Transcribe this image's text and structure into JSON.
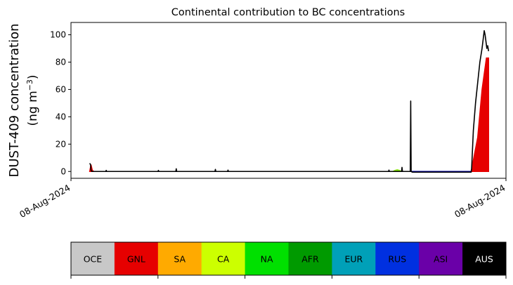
{
  "chart_data": {
    "type": "area",
    "title": "Continental contribution to BC concentrations",
    "ylabel_line1": "DUST-409 concentration",
    "ylabel_line2": "(ng m",
    "ylabel_sup": "−3",
    "ylabel_close": ")",
    "xlabel": "",
    "ylim": [
      -5,
      109
    ],
    "yticks": [
      0,
      20,
      40,
      60,
      80,
      100
    ],
    "xlim": [
      0,
      1
    ],
    "xticks": [
      0,
      1
    ],
    "xtick_labels": [
      "08-Aug-2024",
      "08-Aug-2024"
    ],
    "grid": false,
    "total_line_color": "#000000",
    "series": [
      {
        "name": "GNL",
        "color": "#e60000",
        "x": [
          0.043,
          0.046,
          0.049,
          0.052,
          0.92,
          0.935,
          0.945,
          0.955,
          0.96
        ],
        "y": [
          0.0,
          5.0,
          1.0,
          0.0,
          0.0,
          25.0,
          60.0,
          83.0,
          83.0
        ]
      },
      {
        "name": "NA",
        "color": "#80e000",
        "x": [
          0.74,
          0.745,
          0.75,
          0.755,
          0.76
        ],
        "y": [
          0.0,
          0.8,
          1.2,
          0.8,
          0.0
        ]
      },
      {
        "name": "RUS",
        "color": "#0000a0",
        "x": [
          0.05,
          0.92
        ],
        "y": [
          0.0,
          0.0
        ]
      }
    ],
    "total": {
      "x": [
        0.043,
        0.045,
        0.046,
        0.048,
        0.05,
        0.08,
        0.081,
        0.082,
        0.2,
        0.201,
        0.202,
        0.241,
        0.242,
        0.243,
        0.331,
        0.332,
        0.333,
        0.36,
        0.361,
        0.362,
        0.73,
        0.731,
        0.732,
        0.75,
        0.76,
        0.761,
        0.762,
        0.77,
        0.78,
        0.781,
        0.782,
        0.785,
        0.92,
        0.921,
        0.925,
        0.93,
        0.935,
        0.94,
        0.945,
        0.95,
        0.952,
        0.954,
        0.956,
        0.958,
        0.96
      ],
      "y": [
        6.0,
        5.0,
        1.0,
        0.0,
        0.0,
        0.0,
        0.8,
        0.0,
        0.0,
        0.8,
        0.0,
        0.0,
        2.0,
        0.0,
        0.0,
        1.5,
        0.0,
        0.0,
        1.0,
        0.0,
        0.0,
        1.0,
        0.0,
        0.0,
        0.0,
        3.0,
        0.0,
        0.0,
        0.0,
        51.5,
        0.0,
        -0.5,
        -0.5,
        2.0,
        30.0,
        50.0,
        65.0,
        80.0,
        90.0,
        103.0,
        100.0,
        95.0,
        90.0,
        92.0,
        88.0
      ]
    },
    "legend_placement": "bottom",
    "legend": [
      {
        "label": "OCE",
        "color": "#c8c8c8",
        "text_color": "#000000"
      },
      {
        "label": "GNL",
        "color": "#e60000",
        "text_color": "#000000"
      },
      {
        "label": "SA",
        "color": "#ffaa00",
        "text_color": "#000000"
      },
      {
        "label": "CA",
        "color": "#ccff00",
        "text_color": "#000000"
      },
      {
        "label": "NA",
        "color": "#00e000",
        "text_color": "#000000"
      },
      {
        "label": "AFR",
        "color": "#009a00",
        "text_color": "#000000"
      },
      {
        "label": "EUR",
        "color": "#00a0b8",
        "text_color": "#000000"
      },
      {
        "label": "RUS",
        "color": "#0030e0",
        "text_color": "#000000"
      },
      {
        "label": "ASI",
        "color": "#6a00a8",
        "text_color": "#000000"
      },
      {
        "label": "AUS",
        "color": "#000000",
        "text_color": "#ffffff"
      }
    ]
  }
}
